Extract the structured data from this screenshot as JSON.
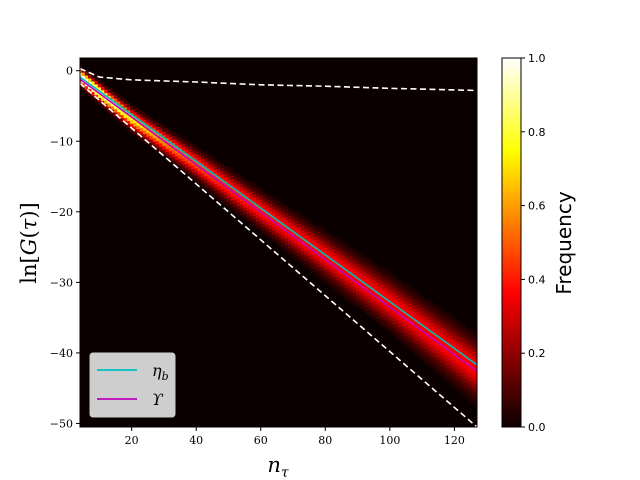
{
  "chart_data": {
    "type": "heatmap",
    "title": "",
    "xlabel": "n_τ",
    "ylabel": "ln[G(τ)]",
    "xlim": [
      4,
      127
    ],
    "ylim": [
      -50.5,
      1.8
    ],
    "x_ticks": [
      20,
      40,
      60,
      80,
      100,
      120
    ],
    "y_ticks": [
      0,
      -10,
      -20,
      -30,
      -40,
      -50
    ],
    "x_tick_labels": [
      "20",
      "40",
      "60",
      "80",
      "100",
      "120"
    ],
    "y_tick_labels": [
      "0",
      "−10",
      "−20",
      "−30",
      "−40",
      "−50"
    ],
    "heatmap": {
      "description_of_ridge": "frequency concentrated along a band from (4,-1) to (127,-42.5)",
      "ridge": [
        [
          4,
          -0.8
        ],
        [
          20,
          -6.8
        ],
        [
          40,
          -13.2
        ],
        [
          60,
          -19.8
        ],
        [
          80,
          -26.3
        ],
        [
          100,
          -32.9
        ],
        [
          127,
          -42.4
        ]
      ],
      "peak_frequency_at_start": 1.0,
      "colormap": "hot"
    },
    "colorbar": {
      "label": "Frequency",
      "range": [
        0.0,
        1.0
      ],
      "ticks": [
        0.0,
        0.2,
        0.4,
        0.6,
        0.8,
        1.0
      ],
      "tick_labels": [
        "0.0",
        "0.2",
        "0.4",
        "0.6",
        "0.8",
        "1.0"
      ]
    },
    "series": [
      {
        "name": "η_b",
        "color": "#00bfbf",
        "x": [
          4,
          127
        ],
        "y": [
          -0.9,
          -41.7
        ]
      },
      {
        "name": "ϒ",
        "color": "#bf00bf",
        "x": [
          4,
          127
        ],
        "y": [
          -1.2,
          -42.6
        ]
      }
    ],
    "bounds": [
      {
        "color": "#ffffff",
        "style": "dashed",
        "x": [
          4,
          10,
          20,
          40,
          60,
          80,
          100,
          127
        ],
        "y": [
          0.3,
          -0.9,
          -1.3,
          -1.6,
          -2.0,
          -2.2,
          -2.5,
          -2.8
        ]
      },
      {
        "color": "#ffffff",
        "style": "dashed",
        "x": [
          4,
          127
        ],
        "y": [
          -1.8,
          -50.5
        ]
      }
    ],
    "legend": {
      "placement": "lower-left",
      "entries": [
        {
          "label": "η",
          "sub": "b",
          "color": "#00bfbf"
        },
        {
          "label": "ϒ",
          "sub": "",
          "color": "#bf00bf"
        }
      ]
    },
    "grid": false
  }
}
